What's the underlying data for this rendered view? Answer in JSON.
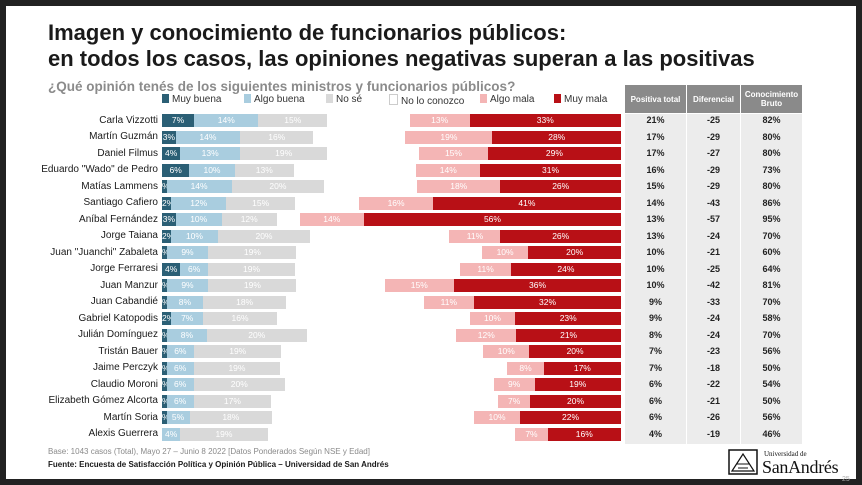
{
  "title_line1": "Imagen y conocimiento de funcionarios públicos:",
  "title_line2": "en todos los casos, las opiniones negativas superan a las positivas",
  "subtitle": "¿Qué opinión tenés de los siguientes ministros y funcionarios públicos?",
  "table_headers": [
    "Positiva total",
    "Diferencial",
    "Conocimiento Bruto"
  ],
  "base_note": "Base: 1043 casos (Total), Mayo 27 – Junio 8 2022 [Datos Ponderados Según NSE y Edad]",
  "source": "Fuente: Encuesta de Satisfacción Política y Opinión Pública – Universidad de San Andrés",
  "logo": {
    "small": "Universidad de",
    "big": "SanAndrés"
  },
  "page_number": "25",
  "colors": {
    "muy_buena": "#2b5f75",
    "algo_buena": "#a9cddf",
    "no_se": "#d9d9d9",
    "no_lo_conozco": "#ffffff",
    "algo_mala": "#f4b5b5",
    "muy_mala": "#b81016",
    "table_header": "#8a8a8a"
  },
  "chart_data": {
    "type": "bar",
    "orientation": "horizontal",
    "stacked": true,
    "categories": [
      "Carla Vizzotti",
      "Martín Guzmán",
      "Daniel Filmus",
      "Eduardo \"Wado\" de Pedro",
      "Matías Lammens",
      "Santiago Cafiero",
      "Aníbal Fernández",
      "Jorge Taiana",
      "Juan \"Juanchi\" Zabaleta",
      "Jorge Ferraresi",
      "Juan Manzur",
      "Juan Cabandié",
      "Gabriel Katopodis",
      "Julián Domínguez",
      "Tristán Bauer",
      "Jaime Perczyk",
      "Claudio Moroni",
      "Elizabeth Gómez Alcorta",
      "Martín Soria",
      "Alexis Guerrera"
    ],
    "series": [
      {
        "name": "Muy buena",
        "values": [
          7,
          3,
          4,
          6,
          1,
          2,
          3,
          2,
          1,
          4,
          1,
          1,
          2,
          1,
          1,
          1,
          1,
          1,
          1,
          0
        ]
      },
      {
        "name": "Algo buena",
        "values": [
          14,
          14,
          13,
          10,
          14,
          12,
          10,
          10,
          9,
          6,
          9,
          8,
          7,
          8,
          6,
          6,
          6,
          6,
          5,
          4
        ]
      },
      {
        "name": "No sé",
        "values": [
          15,
          16,
          19,
          13,
          20,
          15,
          12,
          20,
          19,
          19,
          19,
          18,
          16,
          20,
          19,
          19,
          20,
          17,
          18,
          19
        ]
      },
      {
        "name": "No lo conozco",
        "values": [
          18,
          20,
          20,
          27,
          20,
          14,
          5,
          30,
          40,
          36,
          19,
          30,
          42,
          30,
          44,
          50,
          46,
          50,
          44,
          54
        ]
      },
      {
        "name": "Algo mala",
        "values": [
          13,
          19,
          15,
          14,
          18,
          16,
          14,
          11,
          10,
          11,
          15,
          11,
          10,
          12,
          10,
          8,
          9,
          7,
          10,
          7
        ]
      },
      {
        "name": "Muy mala",
        "values": [
          33,
          28,
          29,
          31,
          26,
          41,
          56,
          26,
          20,
          24,
          36,
          32,
          23,
          21,
          20,
          17,
          19,
          20,
          22,
          16
        ]
      }
    ],
    "labels": [
      [
        "7%",
        "14%",
        "15%",
        "",
        "13%",
        "33%"
      ],
      [
        "3%",
        "14%",
        "16%",
        "",
        "19%",
        "28%"
      ],
      [
        "4%",
        "13%",
        "19%",
        "",
        "15%",
        "29%"
      ],
      [
        "6%",
        "10%",
        "13%",
        "",
        "14%",
        "31%"
      ],
      [
        "%",
        "14%",
        "20%",
        "",
        "18%",
        "26%"
      ],
      [
        "2%",
        "12%",
        "15%",
        "",
        "16%",
        "41%"
      ],
      [
        "3%",
        "10%",
        "12%",
        "",
        "14%",
        "56%"
      ],
      [
        "2%",
        "10%",
        "20%",
        "",
        "11%",
        "26%"
      ],
      [
        "%",
        "9%",
        "19%",
        "",
        "10%",
        "20%"
      ],
      [
        "4%",
        "6%",
        "19%",
        "",
        "11%",
        "24%"
      ],
      [
        "%",
        "9%",
        "19%",
        "",
        "15%",
        "36%"
      ],
      [
        "%",
        "8%",
        "18%",
        "",
        "11%",
        "32%"
      ],
      [
        "2%",
        "7%",
        "16%",
        "",
        "10%",
        "23%"
      ],
      [
        "%",
        "8%",
        "20%",
        "",
        "12%",
        "21%"
      ],
      [
        "%",
        "6%",
        "19%",
        "",
        "10%",
        "20%"
      ],
      [
        "%",
        "6%",
        "19%",
        "",
        "8%",
        "17%"
      ],
      [
        "%",
        "6%",
        "20%",
        "",
        "9%",
        "19%"
      ],
      [
        "%",
        "6%",
        "17%",
        "",
        "7%",
        "20%"
      ],
      [
        "%",
        "5%",
        "18%",
        "",
        "10%",
        "22%"
      ],
      [
        "%",
        "4%",
        "19%",
        "",
        "7%",
        "16%"
      ]
    ],
    "table": {
      "positiva_total": [
        "21%",
        "17%",
        "17%",
        "16%",
        "15%",
        "14%",
        "13%",
        "13%",
        "10%",
        "10%",
        "10%",
        "9%",
        "9%",
        "8%",
        "7%",
        "7%",
        "6%",
        "6%",
        "6%",
        "4%"
      ],
      "diferencial": [
        "-25",
        "-29",
        "-27",
        "-29",
        "-29",
        "-43",
        "-57",
        "-24",
        "-21",
        "-25",
        "-42",
        "-33",
        "-24",
        "-24",
        "-23",
        "-18",
        "-22",
        "-21",
        "-26",
        "-19"
      ],
      "conocimiento_bruto": [
        "82%",
        "80%",
        "80%",
        "73%",
        "80%",
        "86%",
        "95%",
        "70%",
        "60%",
        "64%",
        "81%",
        "70%",
        "58%",
        "70%",
        "56%",
        "50%",
        "54%",
        "50%",
        "56%",
        "46%"
      ]
    }
  }
}
